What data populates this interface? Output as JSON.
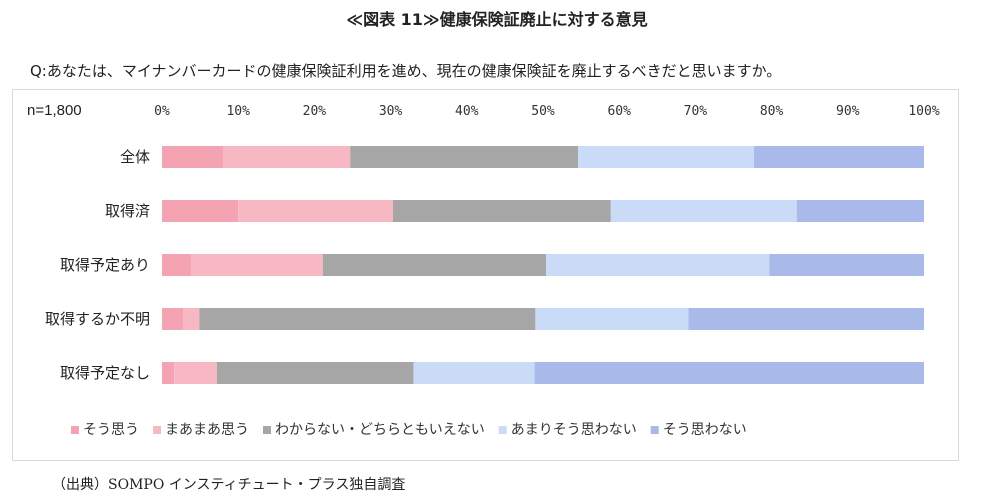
{
  "figure_title": "≪図表 11≫健康保険証廃止に対する意見",
  "question": "Q:あなたは、マイナンバーカードの健康保険証利用を進め、現在の健康保険証を廃止するべきだと思いますか。",
  "source": "（出典）SOMPO インスティチュート・プラス独自調査",
  "chart_data": {
    "type": "bar",
    "orientation": "horizontal",
    "stacked": true,
    "percent_stacked": true,
    "sample_label": "n=1,800",
    "categories": [
      "全体",
      "取得済",
      "取得予定あり",
      "取得するか不明",
      "取得予定なし"
    ],
    "x_ticks": [
      "0%",
      "10%",
      "20%",
      "30%",
      "40%",
      "50%",
      "60%",
      "70%",
      "80%",
      "90%",
      "100%"
    ],
    "xlim": [
      0,
      100
    ],
    "grid": false,
    "legend_position": "bottom",
    "series": [
      {
        "name": "そう思う",
        "color": "#f4a3b2",
        "values": [
          8.0,
          10.0,
          3.8,
          2.8,
          1.6
        ]
      },
      {
        "name": "まあまあ思う",
        "color": "#f7b8c4",
        "values": [
          16.7,
          20.3,
          17.3,
          2.1,
          5.6
        ]
      },
      {
        "name": "わからない・どちらともいえない",
        "color": "#a6a6a6",
        "values": [
          29.9,
          28.6,
          29.3,
          44.1,
          25.8
        ]
      },
      {
        "name": "あまりそう思わない",
        "color": "#c9dbf7",
        "values": [
          23.1,
          24.4,
          29.3,
          20.1,
          15.9
        ]
      },
      {
        "name": "そう思わない",
        "color": "#a9b9ea",
        "values": [
          22.3,
          16.7,
          20.3,
          30.9,
          51.1
        ]
      }
    ]
  }
}
